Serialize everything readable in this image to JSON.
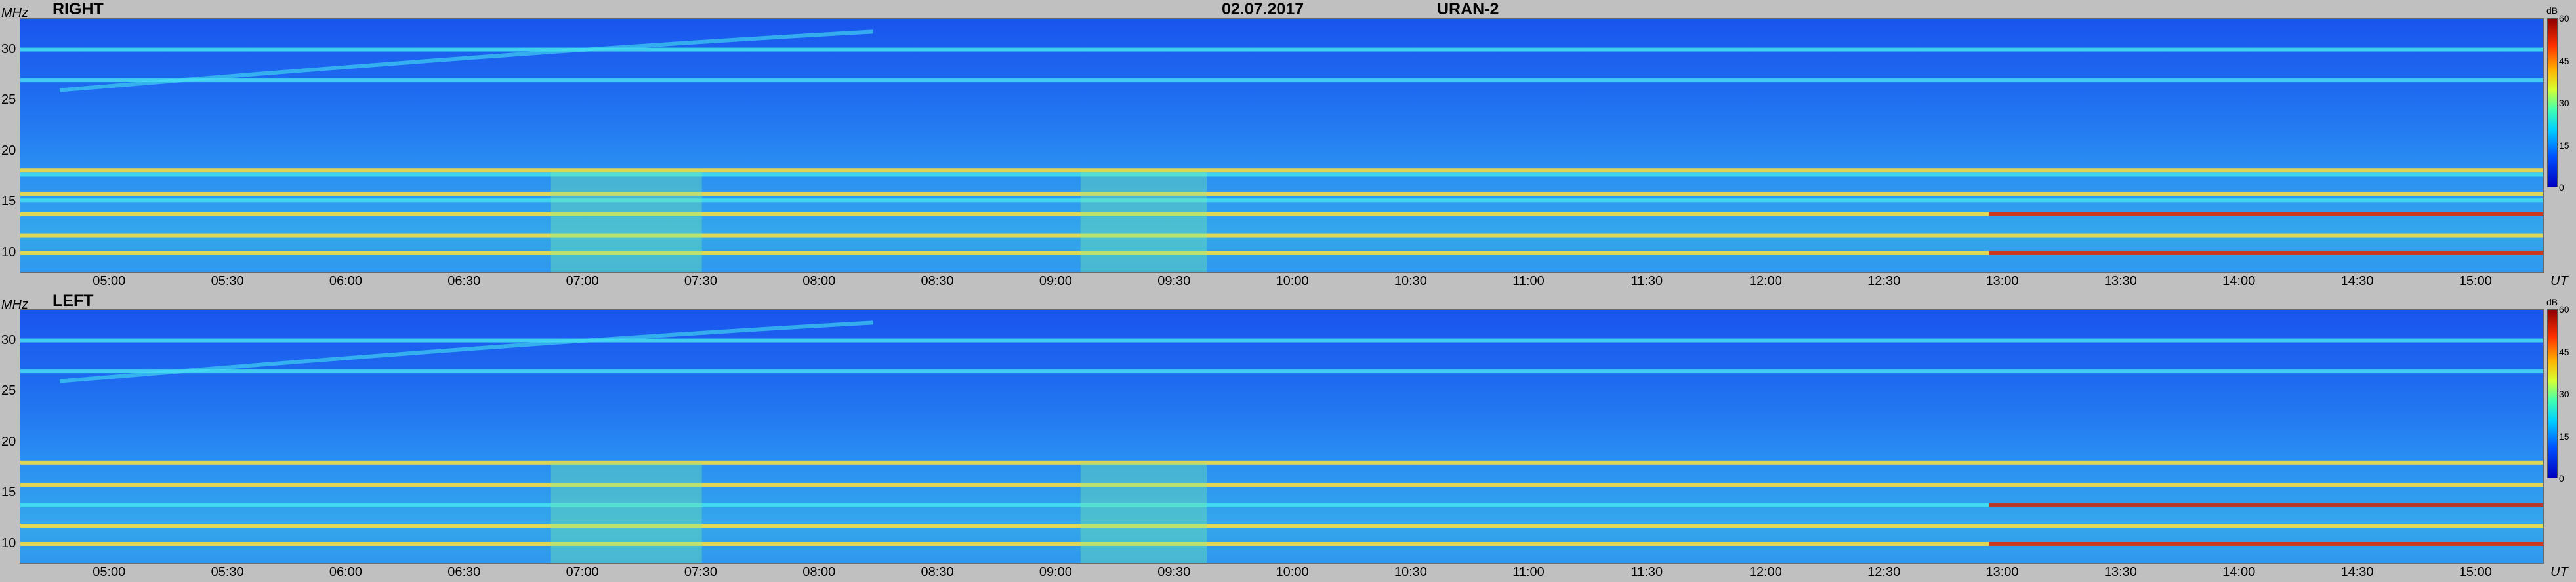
{
  "header": {
    "date": "02.07.2017",
    "instrument": "URAN-2"
  },
  "panels": [
    {
      "title": "RIGHT",
      "y_unit": "MHz",
      "x_unit": "UT",
      "cb_unit": "dB"
    },
    {
      "title": "LEFT",
      "y_unit": "MHz",
      "x_unit": "UT",
      "cb_unit": "dB"
    }
  ],
  "colors": {
    "background": "#c0c0c0",
    "spectrum_base": "#1f6cf0",
    "band_cyan": "#45e0f0",
    "band_yellow": "#ffe23a",
    "band_red": "#c8281a"
  },
  "chart_data": [
    {
      "type": "heatmap",
      "title": "RIGHT",
      "ylabel": "MHz",
      "xlabel": "UT",
      "x_ticks": [
        "05:00",
        "05:30",
        "06:00",
        "06:30",
        "07:00",
        "07:30",
        "08:00",
        "08:30",
        "09:00",
        "09:30",
        "10:00",
        "10:30",
        "11:00",
        "11:30",
        "12:00",
        "12:30",
        "13:00",
        "13:30",
        "14:00",
        "14:30",
        "15:00"
      ],
      "y_ticks": [
        "10",
        "15",
        "20",
        "25",
        "30"
      ],
      "ylim": [
        8,
        33
      ],
      "xlim": [
        "04:37",
        "15:17"
      ],
      "colorbar": {
        "label": "dB",
        "ticks": [
          "0",
          "15",
          "30",
          "45",
          "60"
        ],
        "range": [
          0,
          60
        ]
      },
      "bands_mhz": [
        {
          "freq": 30.0,
          "level": "cyan"
        },
        {
          "freq": 27.0,
          "level": "cyan"
        },
        {
          "freq": 18.1,
          "level": "yellow"
        },
        {
          "freq": 17.7,
          "level": "cyan"
        },
        {
          "freq": 15.8,
          "level": "yellow"
        },
        {
          "freq": 15.2,
          "level": "cyan"
        },
        {
          "freq": 13.8,
          "level": "yellow"
        },
        {
          "freq": 11.7,
          "level": "yellow"
        },
        {
          "freq": 10.0,
          "level": "yellow"
        }
      ]
    },
    {
      "type": "heatmap",
      "title": "LEFT",
      "ylabel": "MHz",
      "xlabel": "UT",
      "x_ticks": [
        "05:00",
        "05:30",
        "06:00",
        "06:30",
        "07:00",
        "07:30",
        "08:00",
        "08:30",
        "09:00",
        "09:30",
        "10:00",
        "10:30",
        "11:00",
        "11:30",
        "12:00",
        "12:30",
        "13:00",
        "13:30",
        "14:00",
        "14:30",
        "15:00"
      ],
      "y_ticks": [
        "10",
        "15",
        "20",
        "25",
        "30"
      ],
      "ylim": [
        8,
        33
      ],
      "xlim": [
        "04:37",
        "15:17"
      ],
      "colorbar": {
        "label": "dB",
        "ticks": [
          "0",
          "15",
          "30",
          "45",
          "60"
        ],
        "range": [
          0,
          60
        ]
      },
      "bands_mhz": [
        {
          "freq": 30.0,
          "level": "cyan"
        },
        {
          "freq": 27.0,
          "level": "cyan"
        },
        {
          "freq": 18.0,
          "level": "yellow"
        },
        {
          "freq": 15.8,
          "level": "yellow"
        },
        {
          "freq": 13.8,
          "level": "cyan"
        },
        {
          "freq": 11.8,
          "level": "yellow"
        },
        {
          "freq": 10.0,
          "level": "yellow"
        }
      ]
    }
  ]
}
